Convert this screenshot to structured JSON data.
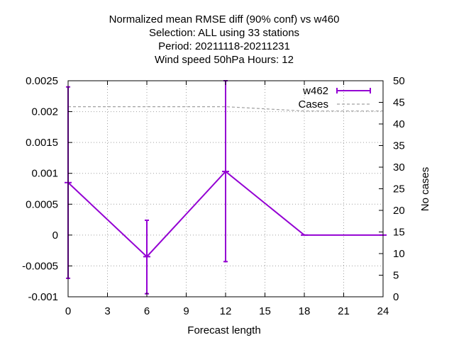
{
  "chart_data": {
    "type": "line",
    "title_lines": [
      "Normalized mean RMSE diff (90% conf) vs w460",
      "Selection: ALL using     33 stations",
      "Period: 20211118-20211231",
      "Wind speed 50hPa   Hours:  12"
    ],
    "xlabel": "Forecast length",
    "ylabel_right": "No cases",
    "xlim": [
      0,
      24
    ],
    "ylim": [
      -0.001,
      0.0025
    ],
    "y2lim": [
      0,
      50
    ],
    "x_ticks": [
      "0",
      "3",
      "6",
      "9",
      "12",
      "15",
      "18",
      "21",
      "24"
    ],
    "y_ticks": [
      "-0.001",
      "-0.0005",
      "0",
      "0.0005",
      "0.001",
      "0.0015",
      "0.002",
      "0.0025"
    ],
    "y2_ticks": [
      "0",
      "5",
      "10",
      "15",
      "20",
      "25",
      "30",
      "35",
      "40",
      "45",
      "50"
    ],
    "grid": true,
    "legend_position": "top-right",
    "series": [
      {
        "name": "w462",
        "color": "#9400d3",
        "style": "linespoints-errorbars",
        "axis": "left",
        "x": [
          0,
          6,
          12,
          18,
          24
        ],
        "y": [
          0.00085,
          -0.00035,
          0.00103,
          0.0,
          0.0
        ],
        "err_low": [
          -0.0007,
          -0.00095,
          -0.00043,
          0.0,
          0.0
        ],
        "err_high": [
          0.0024,
          0.00024,
          0.0025,
          0.0,
          0.0
        ]
      },
      {
        "name": "Cases",
        "color": "#a0a0a0",
        "style": "dashed",
        "axis": "right",
        "x": [
          0,
          6,
          12,
          18,
          24
        ],
        "y": [
          44,
          44,
          44,
          43,
          43
        ]
      }
    ]
  }
}
